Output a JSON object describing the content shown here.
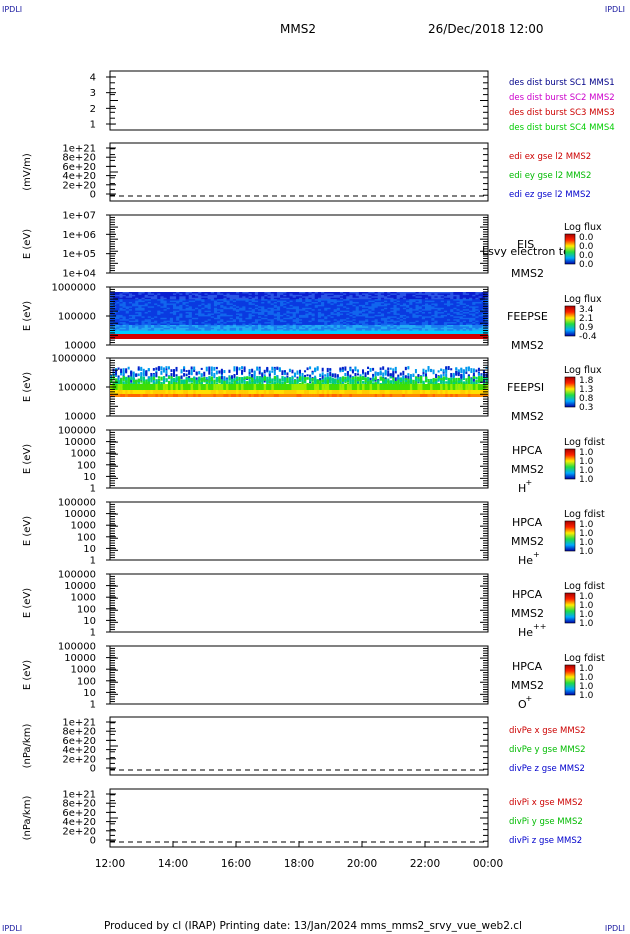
{
  "header": {
    "mission": "MMS2",
    "datetime": "26/Dec/2018 12:00"
  },
  "corners": {
    "tl": "IPDLI",
    "tr": "IPDLI",
    "bl": "IPDLI",
    "br": "IPDLI"
  },
  "footer": {
    "text": "Produced by cl (IRAP)   Printing date: 13/Jan/2024   mms_mms2_srvy_vue_web2.cl"
  },
  "x_axis": {
    "ticks": [
      "12:00",
      "14:00",
      "16:00",
      "18:00",
      "20:00",
      "22:00",
      "00:00"
    ]
  },
  "colors": {
    "red": "#cc0000",
    "green": "#00bb00",
    "blue": "#0000cc",
    "magenta": "#cc00cc",
    "dark_blue": "#000088",
    "bright_green": "#00cc00"
  },
  "chart_data": [
    {
      "type": "line",
      "name": "des dist burst",
      "y_ticks": [
        "4",
        "3",
        "2",
        "1"
      ],
      "ylabel": "",
      "ylim": [
        0.5,
        4.5
      ],
      "legend": [
        {
          "text": "des dist burst SC1 MMS1",
          "color": "#000088"
        },
        {
          "text": "des dist burst SC2 MMS2",
          "color": "#cc00cc"
        },
        {
          "text": "des dist burst SC3 MMS3",
          "color": "#cc0000"
        },
        {
          "text": "des dist burst SC4 MMS4",
          "color": "#00cc00"
        }
      ]
    },
    {
      "type": "line",
      "name": "edi e gse",
      "y_ticks": [
        "1e+21",
        "8e+20",
        "6e+20",
        "4e+20",
        "2e+20",
        "0"
      ],
      "ylabel": "(mV/m)",
      "ylim": [
        0,
        1e+21
      ],
      "legend": [
        {
          "text": "edi ex gse l2 MMS2",
          "color": "#cc0000"
        },
        {
          "text": "edi ey gse l2 MMS2",
          "color": "#00bb00"
        },
        {
          "text": "edi ez gse l2 MMS2",
          "color": "#0000cc"
        }
      ]
    },
    {
      "type": "heatmap",
      "name": "EIS",
      "y_ticks": [
        "1e+07",
        "1e+06",
        "1e+05",
        "1e+04"
      ],
      "ylabel": "E (eV)",
      "log_scale": true,
      "instrument": "EIS",
      "spacecraft": "MMS2",
      "overlay_text": "Lsvy electron to",
      "colorbar": {
        "title": "Log flux",
        "ticks": [
          "0.0",
          "0.0",
          "0.0",
          "0.0"
        ]
      }
    },
    {
      "type": "heatmap",
      "name": "FEEPSE",
      "y_ticks": [
        "1000000",
        "100000",
        "10000"
      ],
      "ylabel": "E (eV)",
      "log_scale": true,
      "instrument": "FEEPSE",
      "spacecraft": "MMS2",
      "colorbar": {
        "title": "Log flux",
        "ticks": [
          "3.4",
          "2.1",
          "0.9",
          "-0.4"
        ]
      }
    },
    {
      "type": "heatmap",
      "name": "FEEPSI",
      "y_ticks": [
        "1000000",
        "100000",
        "10000"
      ],
      "ylabel": "E (eV)",
      "log_scale": true,
      "instrument": "FEEPSI",
      "spacecraft": "MMS2",
      "colorbar": {
        "title": "Log flux",
        "ticks": [
          "1.8",
          "1.3",
          "0.8",
          "0.3"
        ]
      }
    },
    {
      "type": "heatmap",
      "name": "HPCA H+",
      "y_ticks": [
        "100000",
        "10000",
        "1000",
        "100",
        "10",
        "1"
      ],
      "ylabel": "E (eV)",
      "log_scale": true,
      "instrument": "HPCA",
      "spacecraft": "MMS2",
      "species": "H",
      "charge": "+",
      "colorbar": {
        "title": "Log fdist",
        "ticks": [
          "1.0",
          "1.0",
          "1.0",
          "1.0"
        ]
      }
    },
    {
      "type": "heatmap",
      "name": "HPCA He+",
      "y_ticks": [
        "100000",
        "10000",
        "1000",
        "100",
        "10",
        "1"
      ],
      "ylabel": "E (eV)",
      "log_scale": true,
      "instrument": "HPCA",
      "spacecraft": "MMS2",
      "species": "He",
      "charge": "+",
      "colorbar": {
        "title": "Log fdist",
        "ticks": [
          "1.0",
          "1.0",
          "1.0",
          "1.0"
        ]
      }
    },
    {
      "type": "heatmap",
      "name": "HPCA He++",
      "y_ticks": [
        "100000",
        "10000",
        "1000",
        "100",
        "10",
        "1"
      ],
      "ylabel": "E (eV)",
      "log_scale": true,
      "instrument": "HPCA",
      "spacecraft": "MMS2",
      "species": "He",
      "charge": "++",
      "colorbar": {
        "title": "Log fdist",
        "ticks": [
          "1.0",
          "1.0",
          "1.0",
          "1.0"
        ]
      }
    },
    {
      "type": "heatmap",
      "name": "HPCA O+",
      "y_ticks": [
        "100000",
        "10000",
        "1000",
        "100",
        "10",
        "1"
      ],
      "ylabel": "E (eV)",
      "log_scale": true,
      "instrument": "HPCA",
      "spacecraft": "MMS2",
      "species": "O",
      "charge": "+",
      "colorbar": {
        "title": "Log fdist",
        "ticks": [
          "1.0",
          "1.0",
          "1.0",
          "1.0"
        ]
      }
    },
    {
      "type": "line",
      "name": "divPe",
      "y_ticks": [
        "1e+21",
        "8e+20",
        "6e+20",
        "4e+20",
        "2e+20",
        "0"
      ],
      "ylabel": "(nPa/km)",
      "ylim": [
        0,
        1e+21
      ],
      "legend": [
        {
          "text": "divPe x gse MMS2",
          "color": "#cc0000"
        },
        {
          "text": "divPe y gse MMS2",
          "color": "#00bb00"
        },
        {
          "text": "divPe z gse MMS2",
          "color": "#0000cc"
        }
      ]
    },
    {
      "type": "line",
      "name": "divPi",
      "y_ticks": [
        "1e+21",
        "8e+20",
        "6e+20",
        "4e+20",
        "2e+20",
        "0"
      ],
      "ylabel": "(nPa/km)",
      "ylim": [
        0,
        1e+21
      ],
      "legend": [
        {
          "text": "divPi x gse MMS2",
          "color": "#cc0000"
        },
        {
          "text": "divPi y gse MMS2",
          "color": "#00bb00"
        },
        {
          "text": "divPi z gse MMS2",
          "color": "#0000cc"
        }
      ]
    }
  ]
}
